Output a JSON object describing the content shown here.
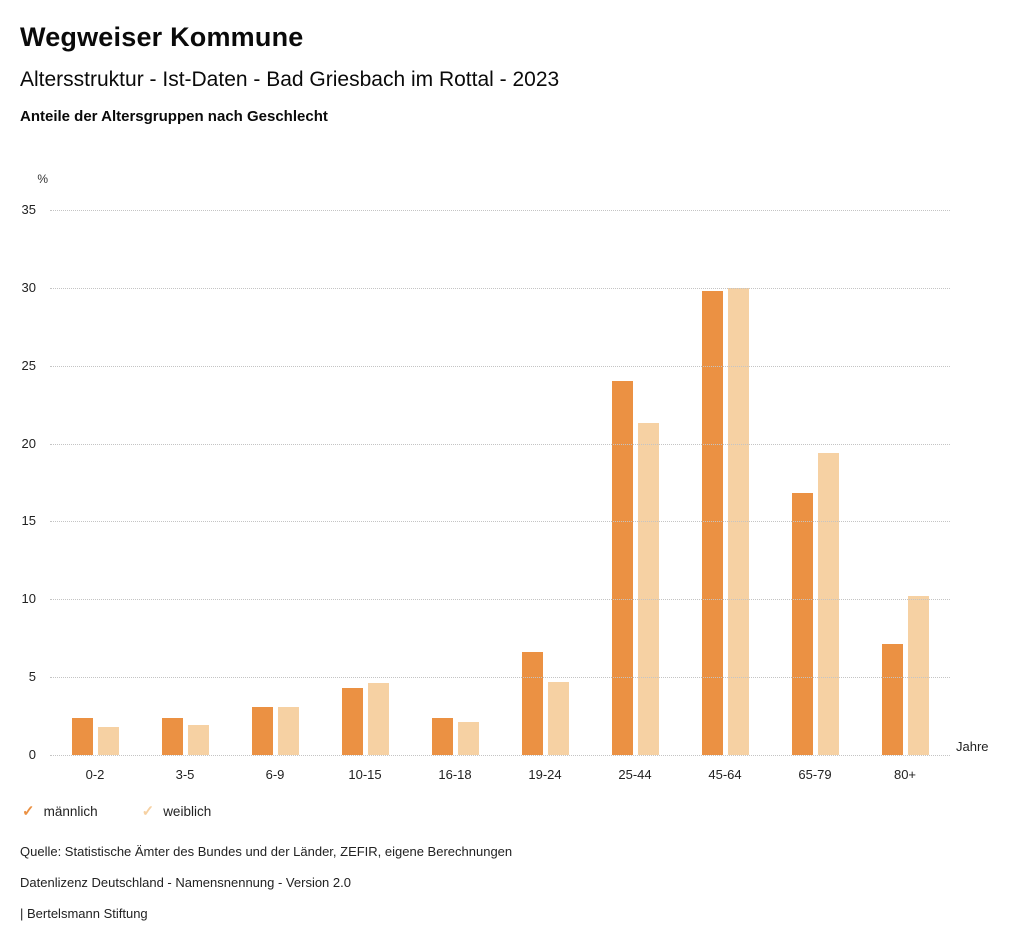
{
  "header": {
    "title": "Wegweiser Kommune",
    "subtitle": "Altersstruktur - Ist-Daten - Bad Griesbach im Rottal - 2023",
    "description": "Anteile der Altersgruppen nach Geschlecht"
  },
  "chart_data": {
    "type": "bar",
    "title": "Anteile der Altersgruppen nach Geschlecht",
    "categories": [
      "0-2",
      "3-5",
      "6-9",
      "10-15",
      "16-18",
      "19-24",
      "25-44",
      "45-64",
      "65-79",
      "80+"
    ],
    "series": [
      {
        "name": "männlich",
        "color": "#EB9143",
        "values": [
          2.4,
          2.4,
          3.1,
          4.3,
          2.4,
          6.6,
          24.0,
          29.8,
          16.8,
          7.1
        ]
      },
      {
        "name": "weiblich",
        "color": "#F6D1A3",
        "values": [
          1.8,
          1.9,
          3.1,
          4.6,
          2.1,
          4.7,
          21.3,
          30.0,
          19.4,
          10.2
        ]
      }
    ],
    "ylabel": "%",
    "xlabel": "Jahre",
    "ylim": [
      0,
      35
    ],
    "yticks": [
      0,
      5,
      10,
      15,
      20,
      25,
      30,
      35
    ],
    "grid": "horizontal-dotted",
    "legend_position": "bottom-left"
  },
  "legend": {
    "items": [
      {
        "label": "männlich",
        "color": "#EB9143",
        "icon": "check-icon"
      },
      {
        "label": "weiblich",
        "color": "#F6D1A3",
        "icon": "check-icon"
      }
    ]
  },
  "footer": {
    "source": "Quelle: Statistische Ämter des Bundes und der Länder, ZEFIR, eigene Berechnungen",
    "license": "Datenlizenz Deutschland - Namensnennung - Version 2.0",
    "attribution": "| Bertelsmann Stiftung"
  }
}
